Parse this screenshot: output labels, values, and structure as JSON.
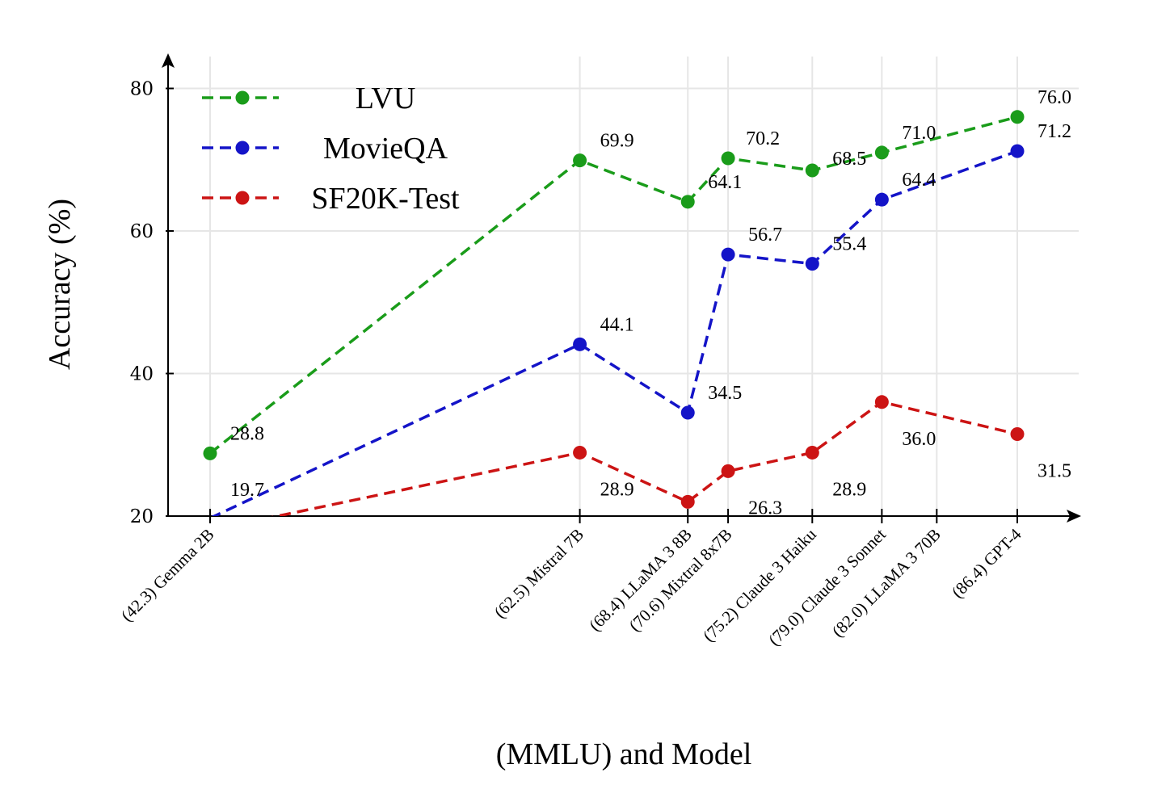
{
  "chart_data": {
    "type": "line",
    "title": "",
    "xlabel": "(MMLU) and Model",
    "ylabel": "Accuracy (%)",
    "ylim": [
      20,
      85
    ],
    "yticks": [
      20,
      40,
      60,
      80
    ],
    "grid": true,
    "legend_position": "top-left",
    "x_mmlu": [
      42.3,
      62.5,
      68.4,
      70.6,
      75.2,
      79.0,
      82.0,
      86.4
    ],
    "categories": [
      "(42.3) Gemma 2B",
      "(62.5) Mistral 7B",
      "(68.4) LLaMA 3 8B",
      "(70.6) Mixtral 8x7B",
      "(75.2) Claude 3 Haiku",
      "(79.0) Claude 3 Sonnet",
      "(82.0) LLaMA 3 70B",
      "(86.4) GPT-4"
    ],
    "series": [
      {
        "name": "LVU",
        "color": "#1a9c1a",
        "x": [
          42.3,
          62.5,
          68.4,
          70.6,
          75.2,
          79.0,
          86.4
        ],
        "values": [
          28.8,
          69.9,
          64.1,
          70.2,
          68.5,
          71.0,
          76.0
        ],
        "labels": [
          "28.8",
          "69.9",
          "64.1",
          "70.2",
          "68.5",
          "71.0",
          "76.0"
        ]
      },
      {
        "name": "MovieQA",
        "color": "#1414c8",
        "x": [
          42.3,
          62.5,
          68.4,
          70.6,
          75.2,
          79.0,
          86.4
        ],
        "values": [
          19.7,
          44.1,
          34.5,
          56.7,
          55.4,
          64.4,
          71.2
        ],
        "labels": [
          "19.7",
          "44.1",
          "34.5",
          "56.7",
          "55.4",
          "64.4",
          "71.2"
        ]
      },
      {
        "name": "SF20K-Test",
        "color": "#cc1414",
        "x": [
          42.3,
          62.5,
          68.4,
          70.6,
          75.2,
          79.0,
          86.4
        ],
        "values": [
          18.0,
          28.9,
          22.0,
          26.3,
          28.9,
          36.0,
          31.5
        ],
        "labels": [
          "",
          "28.9",
          "",
          "26.3",
          "28.9",
          "36.0",
          "31.5"
        ]
      }
    ]
  }
}
